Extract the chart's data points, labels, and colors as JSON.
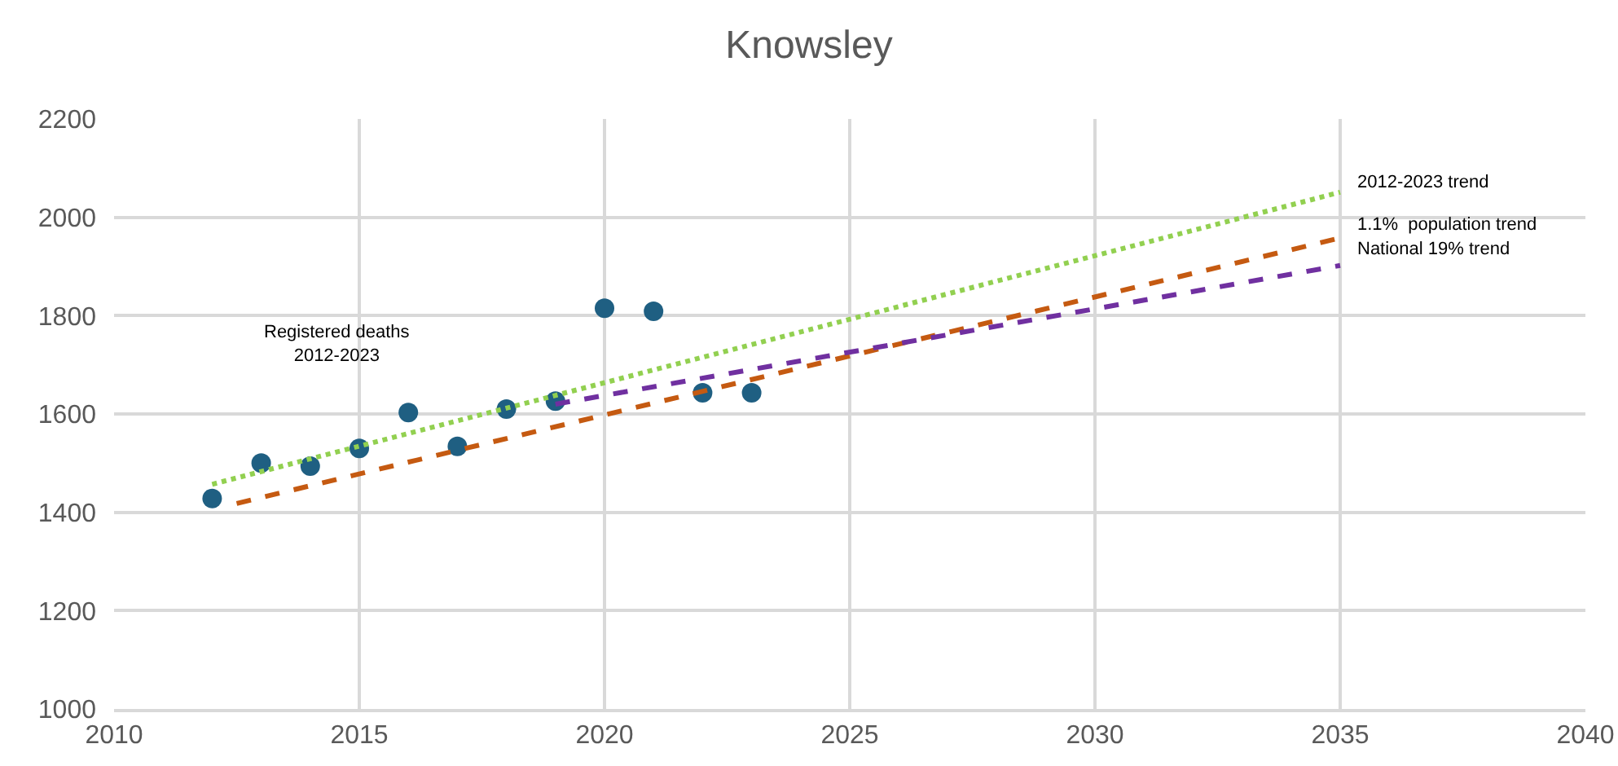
{
  "chart_data": {
    "type": "scatter",
    "title": "Knowsley",
    "xlim": [
      2010,
      2040
    ],
    "xticks": [
      2010,
      2015,
      2020,
      2025,
      2030,
      2035,
      2040
    ],
    "ylim": [
      1000,
      2200
    ],
    "yticks": [
      1000,
      1200,
      1400,
      1600,
      1800,
      2000,
      2200
    ],
    "grid": true,
    "legend": false,
    "series": [
      {
        "name": "Registered deaths 2012-2023",
        "marker": "circle",
        "color": "#1f5f82",
        "x": [
          2012,
          2013,
          2014,
          2015,
          2016,
          2017,
          2018,
          2019,
          2020,
          2021,
          2022,
          2023
        ],
        "values": [
          1428,
          1500,
          1494,
          1530,
          1603,
          1534,
          1610,
          1626,
          1815,
          1809,
          1643,
          1643
        ]
      },
      {
        "name": "2012-2023 trend",
        "type": "line",
        "line_style": "dotted",
        "marker": "none",
        "color": "#92d050",
        "x": [
          2012,
          2035
        ],
        "values": [
          1457,
          2051
        ]
      },
      {
        "name": "1.1%  population trend",
        "type": "line",
        "line_style": "dashed",
        "marker": "none",
        "color": "#c55a11",
        "x": [
          2012.5,
          2035
        ],
        "values": [
          1418,
          1958
        ]
      },
      {
        "name": "National 19% trend",
        "type": "line",
        "line_style": "dashed",
        "marker": "none",
        "color": "#7030a0",
        "x": [
          2019,
          2035
        ],
        "values": [
          1620,
          1902
        ]
      }
    ]
  }
}
